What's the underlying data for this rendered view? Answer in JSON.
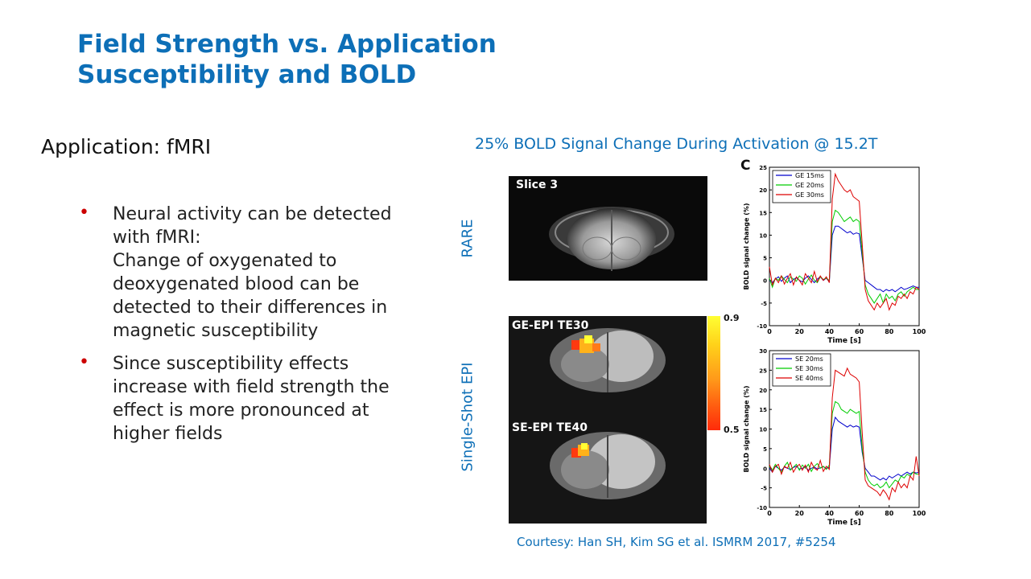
{
  "title": {
    "line1": "Field Strength vs. Application",
    "line2": "Susceptibility and BOLD"
  },
  "left": {
    "heading": "Application: fMRI",
    "bullets": [
      {
        "text": "Neural activity can be detected with fMRI:\nChange of oxygenated to deoxygenated blood can be detected to their differences in magnetic susceptibility"
      },
      {
        "text": "Since susceptibility effects increase with field strength the effect is more pronounced at higher fields"
      }
    ],
    "bullet_color": "#cc0000"
  },
  "figure": {
    "title": "25% BOLD Signal Change During Activation @ 15.2T",
    "row_label_top": "RARE",
    "row_label_bottom": "Single-Shot EPI",
    "panel_letter": "C",
    "images": {
      "slice": "Slice 3",
      "ge": "GE-EPI TE30",
      "se": "SE-EPI TE40"
    },
    "colorbar": {
      "max": "0.9",
      "min": "0.5"
    },
    "courtesy": "Courtesy: Han SH, Kim SG et al. ISMRM 2017, #5254",
    "accent": "#0d6fb7"
  },
  "chart_data": [
    {
      "type": "line",
      "title": "",
      "xlabel": "Time [s]",
      "ylabel": "BOLD signal change (%)",
      "xlim": [
        0,
        100
      ],
      "ylim": [
        -10,
        25
      ],
      "xticks": [
        0,
        20,
        40,
        60,
        80,
        100
      ],
      "yticks": [
        -10,
        -5,
        0,
        5,
        10,
        15,
        20,
        25
      ],
      "legend": "top-left",
      "x": [
        0,
        2,
        4,
        6,
        8,
        10,
        12,
        14,
        16,
        18,
        20,
        22,
        24,
        26,
        28,
        30,
        32,
        34,
        36,
        38,
        40,
        42,
        44,
        46,
        48,
        50,
        52,
        54,
        56,
        58,
        60,
        62,
        64,
        66,
        68,
        70,
        72,
        74,
        76,
        78,
        80,
        82,
        84,
        86,
        88,
        90,
        92,
        94,
        96,
        98,
        100
      ],
      "series": [
        {
          "name": "GE 15ms",
          "color": "#0000cc",
          "values": [
            0,
            -0.5,
            0.3,
            0.8,
            -0.2,
            0.5,
            1,
            -0.5,
            0.2,
            0.6,
            0,
            -0.3,
            0.5,
            1,
            0.2,
            -0.5,
            0.3,
            0.8,
            0,
            0.5,
            -0.3,
            10,
            12,
            12,
            11.5,
            11,
            10.5,
            10.8,
            10.2,
            10.5,
            10.3,
            5,
            0,
            -0.5,
            -1,
            -1.5,
            -2,
            -2,
            -2.5,
            -2,
            -2.3,
            -2,
            -2.5,
            -2,
            -1.5,
            -2,
            -1.8,
            -1.5,
            -1.2,
            -1.5,
            -1.5
          ]
        },
        {
          "name": "GE 20ms",
          "color": "#00cc00",
          "values": [
            0.5,
            -1.5,
            0.5,
            0,
            1,
            0.2,
            -0.5,
            0.8,
            0.3,
            -0.2,
            1,
            0.5,
            -0.8,
            0.3,
            1.2,
            0,
            -0.5,
            0.8,
            0.2,
            0.5,
            0,
            13,
            15.5,
            15,
            14,
            13,
            13.5,
            14,
            13,
            13.5,
            13,
            6,
            -1,
            -3,
            -4,
            -5,
            -4,
            -3,
            -5,
            -3,
            -4,
            -3.5,
            -4.5,
            -3,
            -2.5,
            -3.5,
            -2.5,
            -2,
            -1.5,
            -2,
            -2
          ]
        },
        {
          "name": "GE 30ms",
          "color": "#dd0000",
          "values": [
            3,
            -1,
            0.5,
            -0.5,
            1,
            -0.8,
            0.5,
            1.5,
            -1,
            0.8,
            0,
            -1,
            1.5,
            0.5,
            -0.5,
            2,
            -0.3,
            1,
            0,
            0.8,
            -0.5,
            18,
            23.5,
            22,
            21,
            20,
            19.5,
            20,
            18.5,
            18,
            17.5,
            8,
            -2,
            -4.5,
            -5.5,
            -6.5,
            -5,
            -6,
            -5,
            -4,
            -6.5,
            -5,
            -5.5,
            -3.5,
            -4,
            -3,
            -4,
            -2.5,
            -3,
            -1.5,
            -2
          ]
        }
      ]
    },
    {
      "type": "line",
      "title": "",
      "xlabel": "Time [s]",
      "ylabel": "BOLD signal change (%)",
      "xlim": [
        0,
        100
      ],
      "ylim": [
        -10,
        30
      ],
      "xticks": [
        0,
        20,
        40,
        60,
        80,
        100
      ],
      "yticks": [
        -10,
        -5,
        0,
        5,
        10,
        15,
        20,
        25,
        30
      ],
      "legend": "top-left",
      "x": [
        0,
        2,
        4,
        6,
        8,
        10,
        12,
        14,
        16,
        18,
        20,
        22,
        24,
        26,
        28,
        30,
        32,
        34,
        36,
        38,
        40,
        42,
        44,
        46,
        48,
        50,
        52,
        54,
        56,
        58,
        60,
        62,
        64,
        66,
        68,
        70,
        72,
        74,
        76,
        78,
        80,
        82,
        84,
        86,
        88,
        90,
        92,
        94,
        96,
        98,
        100
      ],
      "series": [
        {
          "name": "SE 20ms",
          "color": "#0000cc",
          "values": [
            0,
            -1,
            0.5,
            0,
            -0.5,
            0.3,
            0,
            -0.3,
            0.2,
            0.5,
            -0.2,
            0,
            0.4,
            -0.5,
            0,
            0.3,
            -0.2,
            0.1,
            0.4,
            0,
            0.2,
            10,
            13,
            12,
            11.5,
            11,
            10.5,
            11,
            10.5,
            10.8,
            10.5,
            4,
            0,
            -1,
            -2,
            -2,
            -2.5,
            -3,
            -2.5,
            -3,
            -2,
            -2.5,
            -2,
            -1.5,
            -2,
            -1.5,
            -1,
            -1.5,
            -1,
            -1.2,
            -1
          ]
        },
        {
          "name": "SE 30ms",
          "color": "#00cc00",
          "values": [
            0.5,
            -0.5,
            1,
            0,
            -1,
            0.5,
            1.5,
            -0.5,
            0.3,
            1,
            -0.5,
            0.8,
            0,
            1,
            -0.8,
            0.5,
            1.2,
            0,
            0.5,
            -0.3,
            0.8,
            14,
            17,
            16.5,
            15,
            14.5,
            14,
            15,
            14.5,
            14,
            14.5,
            5,
            -1,
            -3,
            -4,
            -4.5,
            -4,
            -5,
            -4.5,
            -3.5,
            -5,
            -4,
            -3,
            -3.5,
            -2,
            -2.5,
            -1.5,
            -2,
            -1,
            -1.5,
            -1.5
          ]
        },
        {
          "name": "SE 40ms",
          "color": "#dd0000",
          "values": [
            1,
            -1,
            0.5,
            1,
            -1.5,
            0.5,
            0,
            1.5,
            -1,
            0.3,
            1,
            -0.5,
            0.8,
            -1,
            1.5,
            0,
            -0.5,
            2,
            -0.8,
            0.5,
            -0.3,
            18,
            25,
            24.5,
            24,
            23.5,
            25.5,
            24,
            23.5,
            23,
            22,
            9,
            -3,
            -4.5,
            -5,
            -5.5,
            -6,
            -7,
            -5.5,
            -6.5,
            -8,
            -5,
            -6,
            -3.5,
            -5,
            -4,
            -5,
            -2,
            -3,
            3,
            -2
          ]
        }
      ]
    }
  ]
}
